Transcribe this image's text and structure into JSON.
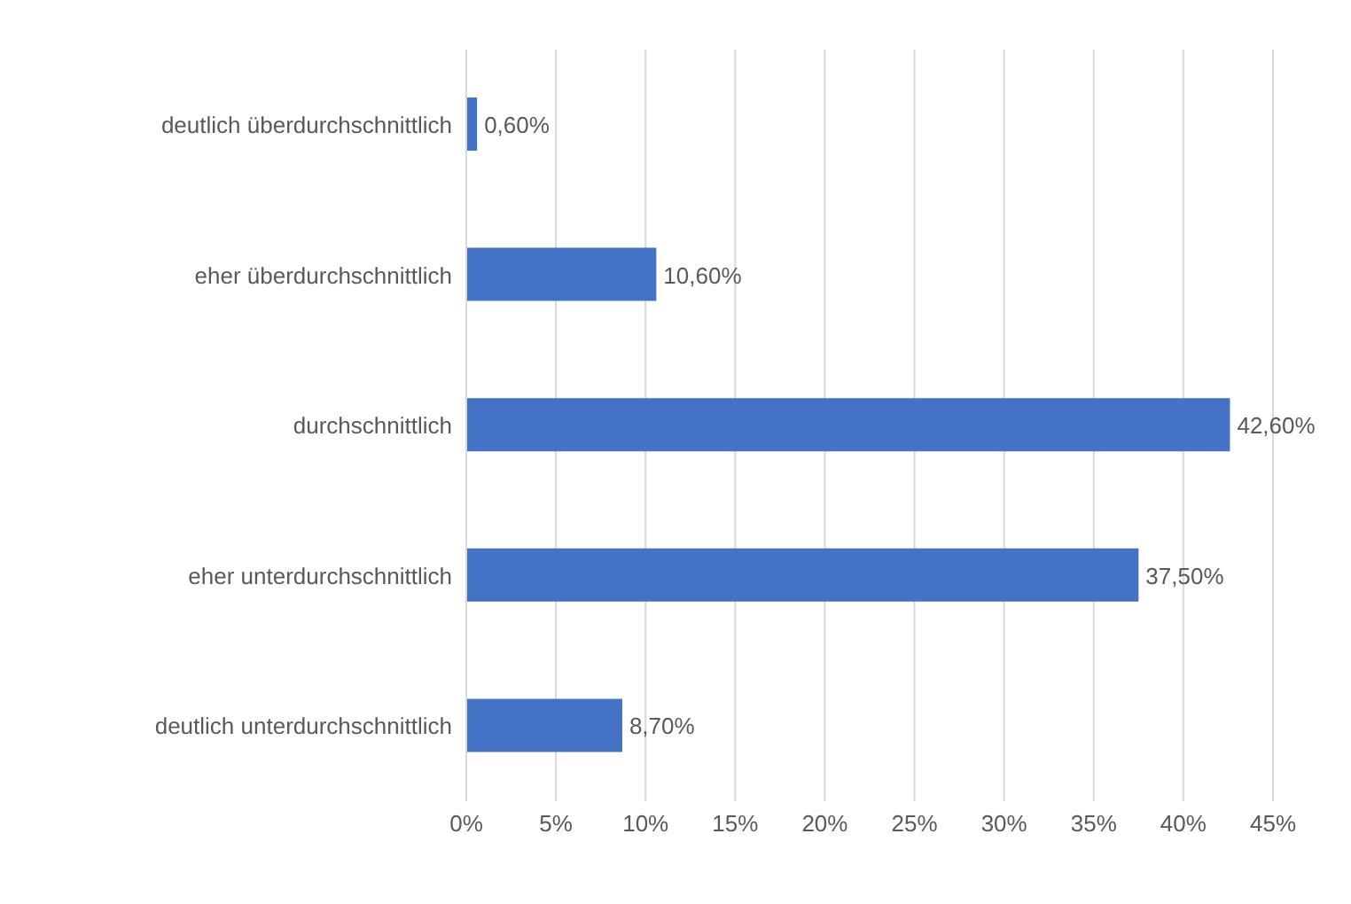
{
  "chart_data": {
    "type": "bar",
    "orientation": "horizontal",
    "categories": [
      "deutlich überdurchschnittlich",
      "eher überdurchschnittlich",
      "durchschnittlich",
      "eher unterdurchschnittlich",
      "deutlich unterdurchschnittlich"
    ],
    "values": [
      0.6,
      10.6,
      42.6,
      37.5,
      8.7
    ],
    "value_labels": [
      "0,60%",
      "10,60%",
      "42,60%",
      "37,50%",
      "8,70%"
    ],
    "color": "#4472c4",
    "xlim": [
      0,
      45
    ],
    "xticks": [
      {
        "value": 0,
        "label": "0%"
      },
      {
        "value": 5,
        "label": "5%"
      },
      {
        "value": 10,
        "label": "10%"
      },
      {
        "value": 15,
        "label": "15%"
      },
      {
        "value": 20,
        "label": "20%"
      },
      {
        "value": 25,
        "label": "25%"
      },
      {
        "value": 30,
        "label": "30%"
      },
      {
        "value": 35,
        "label": "35%"
      },
      {
        "value": 40,
        "label": "40%"
      },
      {
        "value": 45,
        "label": "45%"
      }
    ],
    "grid": "x"
  }
}
